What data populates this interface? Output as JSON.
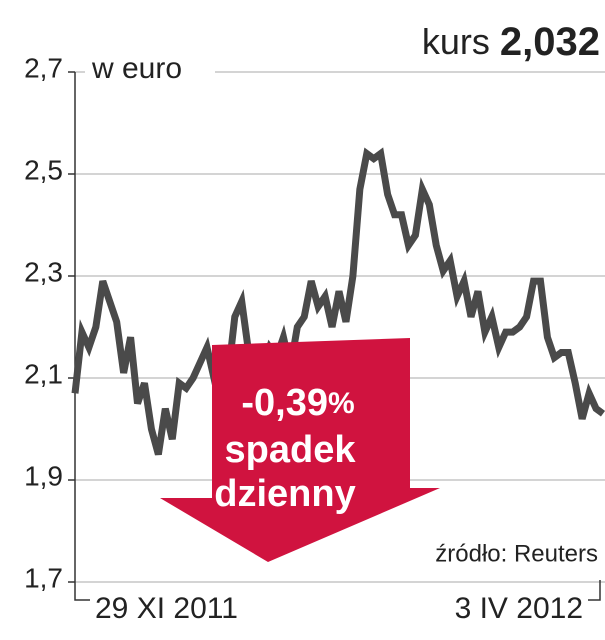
{
  "chart_data": {
    "type": "line",
    "title": "kurs",
    "title_value": "2,032",
    "y_label": "w euro",
    "annotations": {
      "change": "-0,39",
      "change_unit": "%",
      "line1": "spadek",
      "line2": "dzienny"
    },
    "source": "źródło: Reuters",
    "categories": [
      "29 XI 2011",
      null,
      null,
      null,
      null,
      null,
      null,
      null,
      null,
      null,
      null,
      null,
      null,
      null,
      null,
      null,
      null,
      null,
      null,
      null,
      null,
      null,
      null,
      null,
      null,
      null,
      null,
      null,
      null,
      null,
      null,
      null,
      null,
      null,
      null,
      null,
      null,
      null,
      null,
      null,
      null,
      null,
      null,
      null,
      null,
      null,
      null,
      null,
      null,
      null,
      null,
      null,
      null,
      null,
      null,
      null,
      null,
      null,
      null,
      null,
      null,
      null,
      null,
      null,
      null,
      null,
      null,
      null,
      null,
      null,
      null,
      null,
      null,
      null,
      null,
      null,
      "3 IV 2012"
    ],
    "series": [
      {
        "name": "kurs",
        "color": "#4a4a4a",
        "values": [
          2.07,
          2.19,
          2.16,
          2.2,
          2.29,
          2.25,
          2.21,
          2.11,
          2.18,
          2.05,
          2.09,
          2.0,
          1.95,
          2.04,
          1.98,
          2.09,
          2.08,
          2.1,
          2.13,
          2.16,
          2.1,
          2.12,
          2.1,
          2.22,
          2.25,
          2.15,
          2.08,
          2.12,
          2.16,
          2.14,
          2.18,
          2.12,
          2.2,
          2.22,
          2.29,
          2.24,
          2.26,
          2.2,
          2.27,
          2.21,
          2.3,
          2.47,
          2.54,
          2.53,
          2.54,
          2.46,
          2.42,
          2.42,
          2.36,
          2.38,
          2.47,
          2.44,
          2.36,
          2.31,
          2.33,
          2.26,
          2.29,
          2.22,
          2.27,
          2.19,
          2.22,
          2.16,
          2.19,
          2.19,
          2.2,
          2.22,
          2.29,
          2.29,
          2.18,
          2.14,
          2.15,
          2.15,
          2.09,
          2.02,
          2.07,
          2.04,
          2.03
        ]
      }
    ],
    "ylim": [
      1.7,
      2.7
    ],
    "yticks": [
      {
        "value": 1.7,
        "label": "1,7"
      },
      {
        "value": 1.9,
        "label": "1,9"
      },
      {
        "value": 2.1,
        "label": "2,1"
      },
      {
        "value": 2.3,
        "label": "2,3"
      },
      {
        "value": 2.5,
        "label": "2,5"
      },
      {
        "value": 2.7,
        "label": "2,7"
      }
    ],
    "grid": true
  }
}
